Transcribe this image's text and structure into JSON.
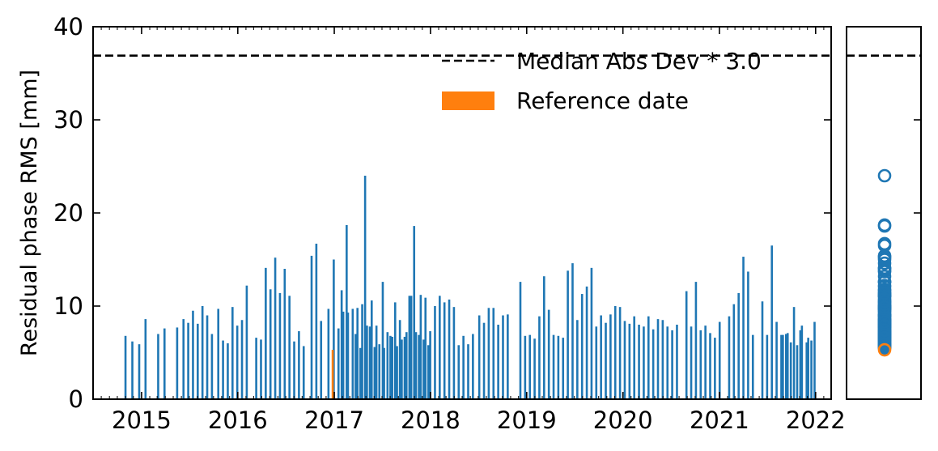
{
  "chart_data": {
    "type": "bar",
    "ylabel": "Residual phase RMS [mm]",
    "ylim": [
      0,
      40
    ],
    "yticks": [
      0,
      10,
      20,
      30,
      40
    ],
    "xlim": [
      "2014-07-01",
      "2022-03-01"
    ],
    "xticks": [
      "2015",
      "2016",
      "2017",
      "2018",
      "2019",
      "2020",
      "2021",
      "2022"
    ],
    "threshold": {
      "value": 36.9,
      "label": "Median Abs Dev * 3.0",
      "style": "dashed"
    },
    "legend": {
      "position": "upper-right",
      "entries": [
        "Median Abs Dev * 3.0",
        "Reference date"
      ]
    },
    "colors": {
      "bars": "#1f77b4",
      "reference": "#ff7f0e",
      "threshold": "#000000"
    },
    "reference": {
      "date": "2016-12-26",
      "value": 5.3,
      "name": "Reference date"
    },
    "series": [
      {
        "values": [
          [
            "2014-11-01",
            6.8
          ],
          [
            "2014-11-27",
            6.2
          ],
          [
            "2014-12-23",
            5.9
          ],
          [
            "2015-01-16",
            8.6
          ],
          [
            "2015-03-05",
            7.0
          ],
          [
            "2015-03-29",
            7.6
          ],
          [
            "2015-05-16",
            7.7
          ],
          [
            "2015-06-09",
            8.6
          ],
          [
            "2015-06-27",
            8.2
          ],
          [
            "2015-07-15",
            9.5
          ],
          [
            "2015-08-02",
            8.1
          ],
          [
            "2015-08-20",
            10.0
          ],
          [
            "2015-09-07",
            9.0
          ],
          [
            "2015-09-25",
            7.0
          ],
          [
            "2015-10-19",
            9.7
          ],
          [
            "2015-11-06",
            6.3
          ],
          [
            "2015-11-24",
            6.0
          ],
          [
            "2015-12-12",
            9.9
          ],
          [
            "2015-12-30",
            7.9
          ],
          [
            "2016-01-17",
            8.5
          ],
          [
            "2016-02-04",
            12.2
          ],
          [
            "2016-03-11",
            6.6
          ],
          [
            "2016-03-29",
            6.4
          ],
          [
            "2016-04-16",
            14.1
          ],
          [
            "2016-05-04",
            11.8
          ],
          [
            "2016-05-22",
            15.2
          ],
          [
            "2016-06-09",
            11.4
          ],
          [
            "2016-06-27",
            14.0
          ],
          [
            "2016-07-15",
            11.1
          ],
          [
            "2016-08-02",
            6.2
          ],
          [
            "2016-08-20",
            7.3
          ],
          [
            "2016-09-07",
            5.7
          ],
          [
            "2016-10-07",
            15.4
          ],
          [
            "2016-10-25",
            16.7
          ],
          [
            "2016-11-12",
            8.4
          ],
          [
            "2016-12-10",
            9.7
          ],
          [
            "2016-12-30",
            15.0
          ],
          [
            "2017-01-29",
            11.7
          ],
          [
            "2017-02-17",
            18.7
          ],
          [
            "2017-03-23",
            7.0
          ],
          [
            "2017-04-10",
            5.5
          ],
          [
            "2017-04-28",
            24.0
          ],
          [
            "2017-05-16",
            7.8
          ],
          [
            "2017-06-03",
            5.6
          ],
          [
            "2017-06-21",
            5.9
          ],
          [
            "2017-07-09",
            5.5
          ],
          [
            "2017-08-02",
            6.8
          ],
          [
            "2017-08-20",
            10.4
          ],
          [
            "2017-09-07",
            8.5
          ],
          [
            "2017-09-25",
            6.7
          ],
          [
            "2017-10-13",
            11.1
          ],
          [
            "2017-10-31",
            18.6
          ],
          [
            "2017-11-18",
            6.9
          ],
          [
            "2017-12-06",
            6.4
          ],
          [
            "2017-12-24",
            5.8
          ],
          [
            "2017-01-17",
            7.6
          ],
          [
            "2017-02-04",
            9.4
          ],
          [
            "2017-02-22",
            9.3
          ],
          [
            "2017-03-12",
            9.7
          ],
          [
            "2017-03-30",
            9.8
          ],
          [
            "2017-04-17",
            10.2
          ],
          [
            "2017-05-05",
            7.9
          ],
          [
            "2017-05-23",
            10.6
          ],
          [
            "2017-06-10",
            7.9
          ],
          [
            "2017-07-04",
            12.6
          ],
          [
            "2017-07-22",
            7.2
          ],
          [
            "2017-08-09",
            6.7
          ],
          [
            "2017-08-27",
            5.7
          ],
          [
            "2017-09-14",
            6.4
          ],
          [
            "2017-10-02",
            7.2
          ],
          [
            "2017-10-20",
            11.1
          ],
          [
            "2017-11-07",
            7.2
          ],
          [
            "2017-11-25",
            11.2
          ],
          [
            "2017-12-13",
            10.9
          ],
          [
            "2017-12-31",
            7.3
          ],
          [
            "2018-01-18",
            10.0
          ],
          [
            "2018-02-05",
            11.1
          ],
          [
            "2018-02-23",
            10.4
          ],
          [
            "2018-03-13",
            10.7
          ],
          [
            "2018-03-31",
            9.9
          ],
          [
            "2018-04-18",
            5.8
          ],
          [
            "2018-05-06",
            6.8
          ],
          [
            "2018-05-24",
            5.9
          ],
          [
            "2018-06-11",
            7.0
          ],
          [
            "2018-07-05",
            9.0
          ],
          [
            "2018-07-23",
            8.2
          ],
          [
            "2018-08-10",
            9.8
          ],
          [
            "2018-08-28",
            9.8
          ],
          [
            "2018-09-15",
            8.0
          ],
          [
            "2018-10-03",
            9.0
          ],
          [
            "2018-10-21",
            9.1
          ],
          [
            "2018-12-08",
            12.6
          ],
          [
            "2018-12-26",
            6.8
          ],
          [
            "2019-01-13",
            6.9
          ],
          [
            "2019-01-31",
            6.5
          ],
          [
            "2019-02-18",
            8.9
          ],
          [
            "2019-03-08",
            13.2
          ],
          [
            "2019-03-26",
            9.6
          ],
          [
            "2019-04-13",
            6.9
          ],
          [
            "2019-05-01",
            6.8
          ],
          [
            "2019-05-19",
            6.6
          ],
          [
            "2019-06-06",
            13.8
          ],
          [
            "2019-06-24",
            14.6
          ],
          [
            "2019-07-12",
            8.5
          ],
          [
            "2019-07-30",
            11.3
          ],
          [
            "2019-08-17",
            12.1
          ],
          [
            "2019-09-04",
            14.1
          ],
          [
            "2019-09-22",
            7.8
          ],
          [
            "2019-10-10",
            9.0
          ],
          [
            "2019-10-28",
            8.2
          ],
          [
            "2019-11-15",
            9.1
          ],
          [
            "2019-12-03",
            10.0
          ],
          [
            "2019-12-21",
            9.9
          ],
          [
            "2020-01-08",
            8.4
          ],
          [
            "2020-01-26",
            8.1
          ],
          [
            "2020-02-13",
            8.9
          ],
          [
            "2020-03-02",
            8.0
          ],
          [
            "2020-03-20",
            7.8
          ],
          [
            "2020-04-07",
            8.9
          ],
          [
            "2020-04-25",
            7.5
          ],
          [
            "2020-05-13",
            8.6
          ],
          [
            "2020-05-31",
            8.5
          ],
          [
            "2020-06-18",
            7.8
          ],
          [
            "2020-07-06",
            7.4
          ],
          [
            "2020-07-24",
            8.0
          ],
          [
            "2020-08-29",
            11.6
          ],
          [
            "2020-09-16",
            7.8
          ],
          [
            "2020-10-04",
            12.6
          ],
          [
            "2020-10-22",
            7.4
          ],
          [
            "2020-11-09",
            7.9
          ],
          [
            "2020-11-27",
            7.1
          ],
          [
            "2020-12-15",
            6.6
          ],
          [
            "2021-01-02",
            8.3
          ],
          [
            "2021-02-07",
            8.9
          ],
          [
            "2021-02-25",
            10.2
          ],
          [
            "2021-03-15",
            11.4
          ],
          [
            "2021-04-02",
            15.3
          ],
          [
            "2021-04-20",
            13.7
          ],
          [
            "2021-05-08",
            6.9
          ],
          [
            "2021-06-13",
            10.5
          ],
          [
            "2021-07-01",
            6.9
          ],
          [
            "2021-07-19",
            16.5
          ],
          [
            "2021-08-06",
            8.3
          ],
          [
            "2021-08-24",
            6.9
          ],
          [
            "2021-09-11",
            7.0
          ],
          [
            "2021-09-29",
            6.1
          ],
          [
            "2021-10-23",
            5.8
          ],
          [
            "2021-11-10",
            7.9
          ],
          [
            "2021-11-28",
            6.1
          ],
          [
            "2021-12-16",
            6.3
          ],
          [
            "2021-08-30",
            6.9
          ],
          [
            "2021-09-17",
            7.1
          ],
          [
            "2021-10-11",
            9.9
          ],
          [
            "2021-11-04",
            7.4
          ],
          [
            "2021-12-04",
            6.6
          ],
          [
            "2021-12-28",
            8.3
          ]
        ]
      }
    ],
    "side_panel": {
      "type": "scatter",
      "marker": "open-circle",
      "ylim": [
        0,
        40
      ],
      "note": "values of the main series, stacked at one x position; reference value highlighted"
    }
  }
}
